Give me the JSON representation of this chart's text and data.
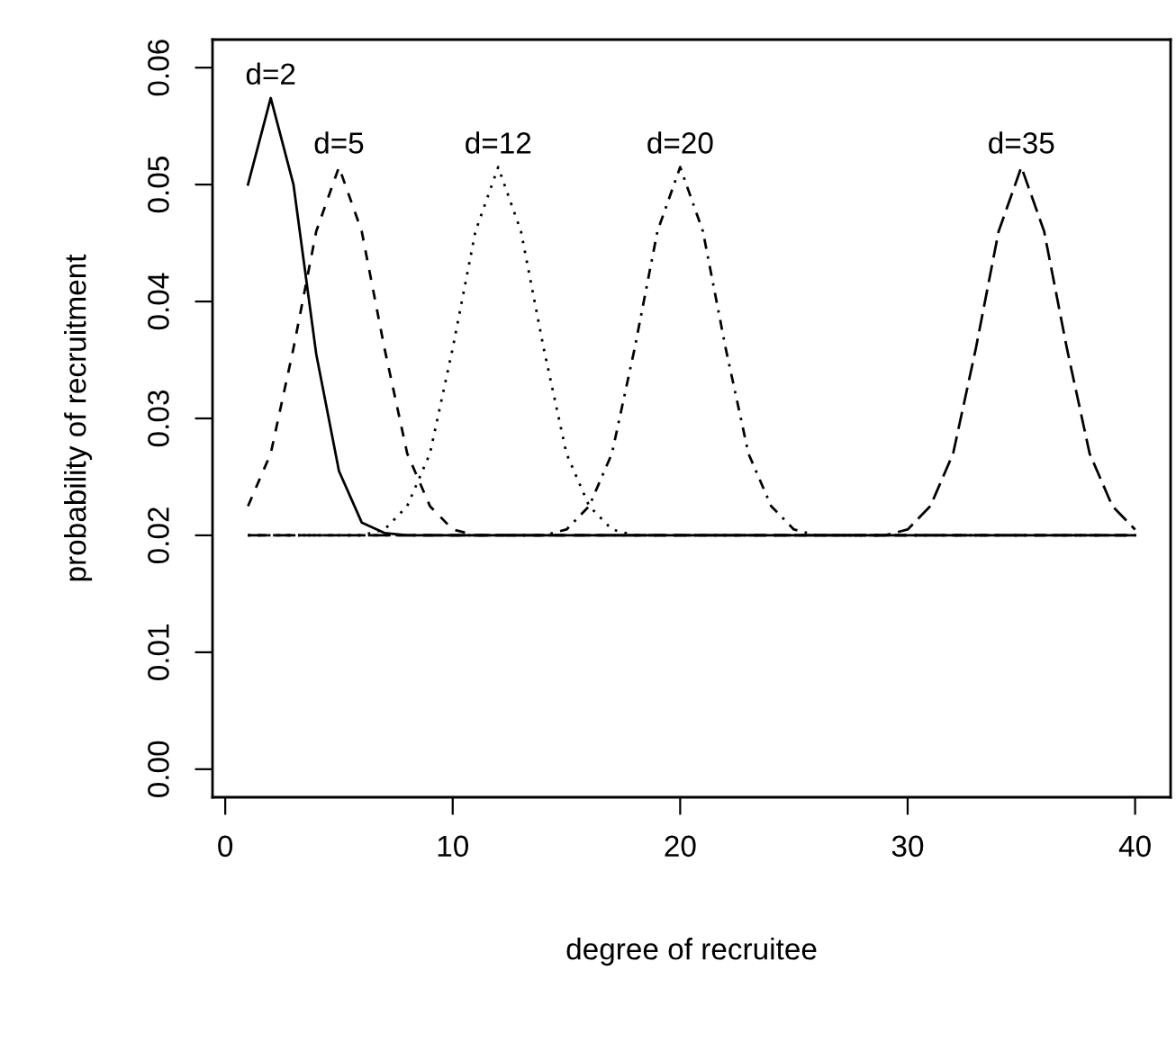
{
  "chart_data": {
    "type": "line",
    "xlabel": "degree of recruitee",
    "ylabel": "probability of recruitment",
    "x": [
      1,
      2,
      3,
      4,
      5,
      6,
      7,
      8,
      9,
      10,
      11,
      12,
      13,
      14,
      15,
      16,
      17,
      18,
      19,
      20,
      21,
      22,
      23,
      24,
      25,
      26,
      27,
      28,
      29,
      30,
      31,
      32,
      33,
      34,
      35,
      36,
      37,
      38,
      39,
      40
    ],
    "series": [
      {
        "name": "d=2",
        "color": "#000000",
        "line_style": "solid",
        "values": [
          0.05,
          0.0574,
          0.05,
          0.0355,
          0.0255,
          0.0211,
          0.0202,
          0.02,
          0.02,
          0.02,
          0.02,
          0.02,
          0.02,
          0.02,
          0.02,
          0.02,
          0.02,
          0.02,
          0.02,
          0.02,
          0.02,
          0.02,
          0.02,
          0.02,
          0.02,
          0.02,
          0.02,
          0.02,
          0.02,
          0.02,
          0.02,
          0.02,
          0.02,
          0.02,
          0.02,
          0.02,
          0.02,
          0.02,
          0.02,
          0.02
        ]
      },
      {
        "name": "d=5",
        "color": "#000000",
        "line_style": "dashed",
        "values": [
          0.0225,
          0.027,
          0.036,
          0.046,
          0.0515,
          0.046,
          0.036,
          0.027,
          0.0225,
          0.0205,
          0.02,
          0.02,
          0.02,
          0.02,
          0.02,
          0.02,
          0.02,
          0.02,
          0.02,
          0.02,
          0.02,
          0.02,
          0.02,
          0.02,
          0.02,
          0.02,
          0.02,
          0.02,
          0.02,
          0.02,
          0.02,
          0.02,
          0.02,
          0.02,
          0.02,
          0.02,
          0.02,
          0.02,
          0.02,
          0.02
        ]
      },
      {
        "name": "d=12",
        "color": "#000000",
        "line_style": "dotted",
        "values": [
          0.02,
          0.02,
          0.02,
          0.02,
          0.02,
          0.02,
          0.0205,
          0.0225,
          0.027,
          0.036,
          0.046,
          0.0515,
          0.046,
          0.036,
          0.027,
          0.0225,
          0.0205,
          0.02,
          0.02,
          0.02,
          0.02,
          0.02,
          0.02,
          0.02,
          0.02,
          0.02,
          0.02,
          0.02,
          0.02,
          0.02,
          0.02,
          0.02,
          0.02,
          0.02,
          0.02,
          0.02,
          0.02,
          0.02,
          0.02,
          0.02
        ]
      },
      {
        "name": "d=20",
        "color": "#000000",
        "line_style": "dashdot",
        "values": [
          0.02,
          0.02,
          0.02,
          0.02,
          0.02,
          0.02,
          0.02,
          0.02,
          0.02,
          0.02,
          0.02,
          0.02,
          0.02,
          0.02,
          0.0205,
          0.0225,
          0.027,
          0.036,
          0.046,
          0.0515,
          0.046,
          0.036,
          0.027,
          0.0225,
          0.0205,
          0.02,
          0.02,
          0.02,
          0.02,
          0.02,
          0.02,
          0.02,
          0.02,
          0.02,
          0.02,
          0.02,
          0.02,
          0.02,
          0.02,
          0.02
        ]
      },
      {
        "name": "d=35",
        "color": "#000000",
        "line_style": "longdash",
        "values": [
          0.02,
          0.02,
          0.02,
          0.02,
          0.02,
          0.02,
          0.02,
          0.02,
          0.02,
          0.02,
          0.02,
          0.02,
          0.02,
          0.02,
          0.02,
          0.02,
          0.02,
          0.02,
          0.02,
          0.02,
          0.02,
          0.02,
          0.02,
          0.02,
          0.02,
          0.02,
          0.02,
          0.02,
          0.02,
          0.0205,
          0.0225,
          0.027,
          0.036,
          0.046,
          0.0515,
          0.046,
          0.036,
          0.027,
          0.0225,
          0.0205
        ]
      }
    ],
    "xlim": [
      -0.56,
      41.56
    ],
    "xticks": [
      0,
      10,
      20,
      30,
      40
    ],
    "ylim": [
      -0.0024,
      0.0624
    ],
    "yticks": [
      {
        "value": 0,
        "label": "0.00"
      },
      {
        "value": 0.01,
        "label": "0.01"
      },
      {
        "value": 0.02,
        "label": "0.02"
      },
      {
        "value": 0.03,
        "label": "0.03"
      },
      {
        "value": 0.04,
        "label": "0.04"
      },
      {
        "value": 0.05,
        "label": "0.05"
      },
      {
        "value": 0.06,
        "label": "0.06"
      }
    ],
    "grid": false,
    "legend": false
  }
}
